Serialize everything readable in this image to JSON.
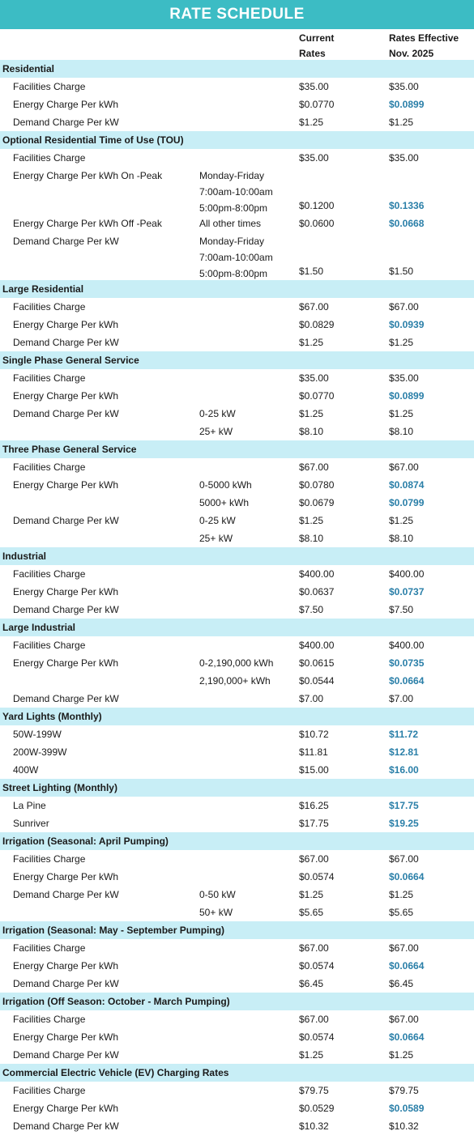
{
  "title": "RATE SCHEDULE",
  "columns": {
    "current": "Current\nRates",
    "effective": "Rates Effective\nNov. 2025"
  },
  "colors": {
    "header": "#3cbcc4",
    "section": "#c8eef6",
    "increase": "#2a7fa8"
  },
  "sections": [
    {
      "name": "Residential",
      "rows": [
        {
          "label": "Facilities Charge",
          "note": "",
          "current": "$35.00",
          "effective": "$35.00",
          "increase": false
        },
        {
          "label": "Energy Charge Per kWh",
          "note": "",
          "current": "$0.0770",
          "effective": "$0.0899",
          "increase": true
        },
        {
          "label": "Demand Charge Per kW",
          "note": "",
          "current": "$1.25",
          "effective": "$1.25",
          "increase": false
        }
      ]
    },
    {
      "name": "Optional Residential Time of Use (TOU)",
      "rows": [
        {
          "label": "Facilities Charge",
          "note": "",
          "current": "$35.00",
          "effective": "$35.00",
          "increase": false
        },
        {
          "label": "Energy Charge Per kWh On -Peak",
          "note": "Monday-Friday\n7:00am-10:00am\n5:00pm-8:00pm",
          "current": "$0.1200",
          "effective": "$0.1336",
          "increase": true,
          "tall": true
        },
        {
          "label": "Energy Charge Per kWh Off -Peak",
          "note": "All other times",
          "current": "$0.0600",
          "effective": "$0.0668",
          "increase": true
        },
        {
          "label": "Demand Charge Per kW",
          "note": "Monday-Friday\n7:00am-10:00am\n5:00pm-8:00pm",
          "current": "$1.50",
          "effective": "$1.50",
          "increase": false,
          "tall": true
        }
      ]
    },
    {
      "name": "Large Residential",
      "rows": [
        {
          "label": "Facilities Charge",
          "note": "",
          "current": "$67.00",
          "effective": "$67.00",
          "increase": false
        },
        {
          "label": "Energy Charge Per kWh",
          "note": "",
          "current": "$0.0829",
          "effective": "$0.0939",
          "increase": true
        },
        {
          "label": "Demand Charge Per kW",
          "note": "",
          "current": "$1.25",
          "effective": "$1.25",
          "increase": false
        }
      ]
    },
    {
      "name": "Single Phase General Service",
      "rows": [
        {
          "label": "Facilities Charge",
          "note": "",
          "current": "$35.00",
          "effective": "$35.00",
          "increase": false
        },
        {
          "label": "Energy Charge Per kWh",
          "note": "",
          "current": "$0.0770",
          "effective": "$0.0899",
          "increase": true
        },
        {
          "label": "Demand Charge Per kW",
          "note": "0-25 kW",
          "current": "$1.25",
          "effective": "$1.25",
          "increase": false
        },
        {
          "label": "",
          "note": "25+ kW",
          "current": "$8.10",
          "effective": "$8.10",
          "increase": false
        }
      ]
    },
    {
      "name": "Three Phase General Service",
      "rows": [
        {
          "label": "Facilities Charge",
          "note": "",
          "current": "$67.00",
          "effective": "$67.00",
          "increase": false
        },
        {
          "label": "Energy Charge Per kWh",
          "note": "0-5000 kWh",
          "current": "$0.0780",
          "effective": "$0.0874",
          "increase": true
        },
        {
          "label": "",
          "note": "5000+ kWh",
          "current": "$0.0679",
          "effective": "$0.0799",
          "increase": true
        },
        {
          "label": "Demand Charge Per kW",
          "note": "0-25 kW",
          "current": "$1.25",
          "effective": "$1.25",
          "increase": false
        },
        {
          "label": "",
          "note": "25+ kW",
          "current": "$8.10",
          "effective": "$8.10",
          "increase": false
        }
      ]
    },
    {
      "name": "Industrial",
      "rows": [
        {
          "label": "Facilities Charge",
          "note": "",
          "current": "$400.00",
          "effective": "$400.00",
          "increase": false
        },
        {
          "label": "Energy Charge Per kWh",
          "note": "",
          "current": "$0.0637",
          "effective": "$0.0737",
          "increase": true
        },
        {
          "label": "Demand Charge Per kW",
          "note": "",
          "current": "$7.50",
          "effective": "$7.50",
          "increase": false
        }
      ]
    },
    {
      "name": "Large Industrial",
      "rows": [
        {
          "label": "Facilities Charge",
          "note": "",
          "current": "$400.00",
          "effective": "$400.00",
          "increase": false
        },
        {
          "label": "Energy Charge Per kWh",
          "note": "0-2,190,000 kWh",
          "current": "$0.0615",
          "effective": "$0.0735",
          "increase": true
        },
        {
          "label": "",
          "note": "2,190,000+ kWh",
          "current": "$0.0544",
          "effective": "$0.0664",
          "increase": true
        },
        {
          "label": "Demand Charge Per kW",
          "note": "",
          "current": "$7.00",
          "effective": "$7.00",
          "increase": false
        }
      ]
    },
    {
      "name": "Yard Lights (Monthly)",
      "rows": [
        {
          "label": "50W-199W",
          "note": "",
          "current": "$10.72",
          "effective": "$11.72",
          "increase": true
        },
        {
          "label": "200W-399W",
          "note": "",
          "current": "$11.81",
          "effective": "$12.81",
          "increase": true
        },
        {
          "label": "400W",
          "note": "",
          "current": "$15.00",
          "effective": "$16.00",
          "increase": true
        }
      ]
    },
    {
      "name": "Street Lighting (Monthly)",
      "rows": [
        {
          "label": "La Pine",
          "note": "",
          "current": "$16.25",
          "effective": "$17.75",
          "increase": true
        },
        {
          "label": "Sunriver",
          "note": "",
          "current": "$17.75",
          "effective": "$19.25",
          "increase": true
        }
      ]
    },
    {
      "name": "Irrigation (Seasonal: April Pumping)",
      "rows": [
        {
          "label": "Facilities Charge",
          "note": "",
          "current": "$67.00",
          "effective": "$67.00",
          "increase": false
        },
        {
          "label": "Energy Charge Per kWh",
          "note": "",
          "current": "$0.0574",
          "effective": "$0.0664",
          "increase": true
        },
        {
          "label": "Demand Charge Per kW",
          "note": "0-50 kW",
          "current": "$1.25",
          "effective": "$1.25",
          "increase": false
        },
        {
          "label": "",
          "note": "50+ kW",
          "current": "$5.65",
          "effective": "$5.65",
          "increase": false
        }
      ]
    },
    {
      "name": "Irrigation (Seasonal: May - September Pumping)",
      "rows": [
        {
          "label": "Facilities Charge",
          "note": "",
          "current": "$67.00",
          "effective": "$67.00",
          "increase": false
        },
        {
          "label": "Energy Charge Per kWh",
          "note": "",
          "current": "$0.0574",
          "effective": "$0.0664",
          "increase": true
        },
        {
          "label": "Demand Charge Per kW",
          "note": "",
          "current": "$6.45",
          "effective": "$6.45",
          "increase": false
        }
      ]
    },
    {
      "name": "Irrigation (Off Season: October - March Pumping)",
      "rows": [
        {
          "label": "Facilities Charge",
          "note": "",
          "current": "$67.00",
          "effective": "$67.00",
          "increase": false
        },
        {
          "label": "Energy Charge Per kWh",
          "note": "",
          "current": "$0.0574",
          "effective": "$0.0664",
          "increase": true
        },
        {
          "label": "Demand Charge Per kW",
          "note": "",
          "current": "$1.25",
          "effective": "$1.25",
          "increase": false
        }
      ]
    },
    {
      "name": "Commercial Electric Vehicle (EV) Charging Rates",
      "rows": [
        {
          "label": "Facilities Charge",
          "note": "",
          "current": "$79.75",
          "effective": "$79.75",
          "increase": false
        },
        {
          "label": "Energy Charge Per kWh",
          "note": "",
          "current": "$0.0529",
          "effective": "$0.0589",
          "increase": true
        },
        {
          "label": "Demand Charge Per kW",
          "note": "",
          "current": "$10.32",
          "effective": "$10.32",
          "increase": false
        }
      ]
    }
  ]
}
